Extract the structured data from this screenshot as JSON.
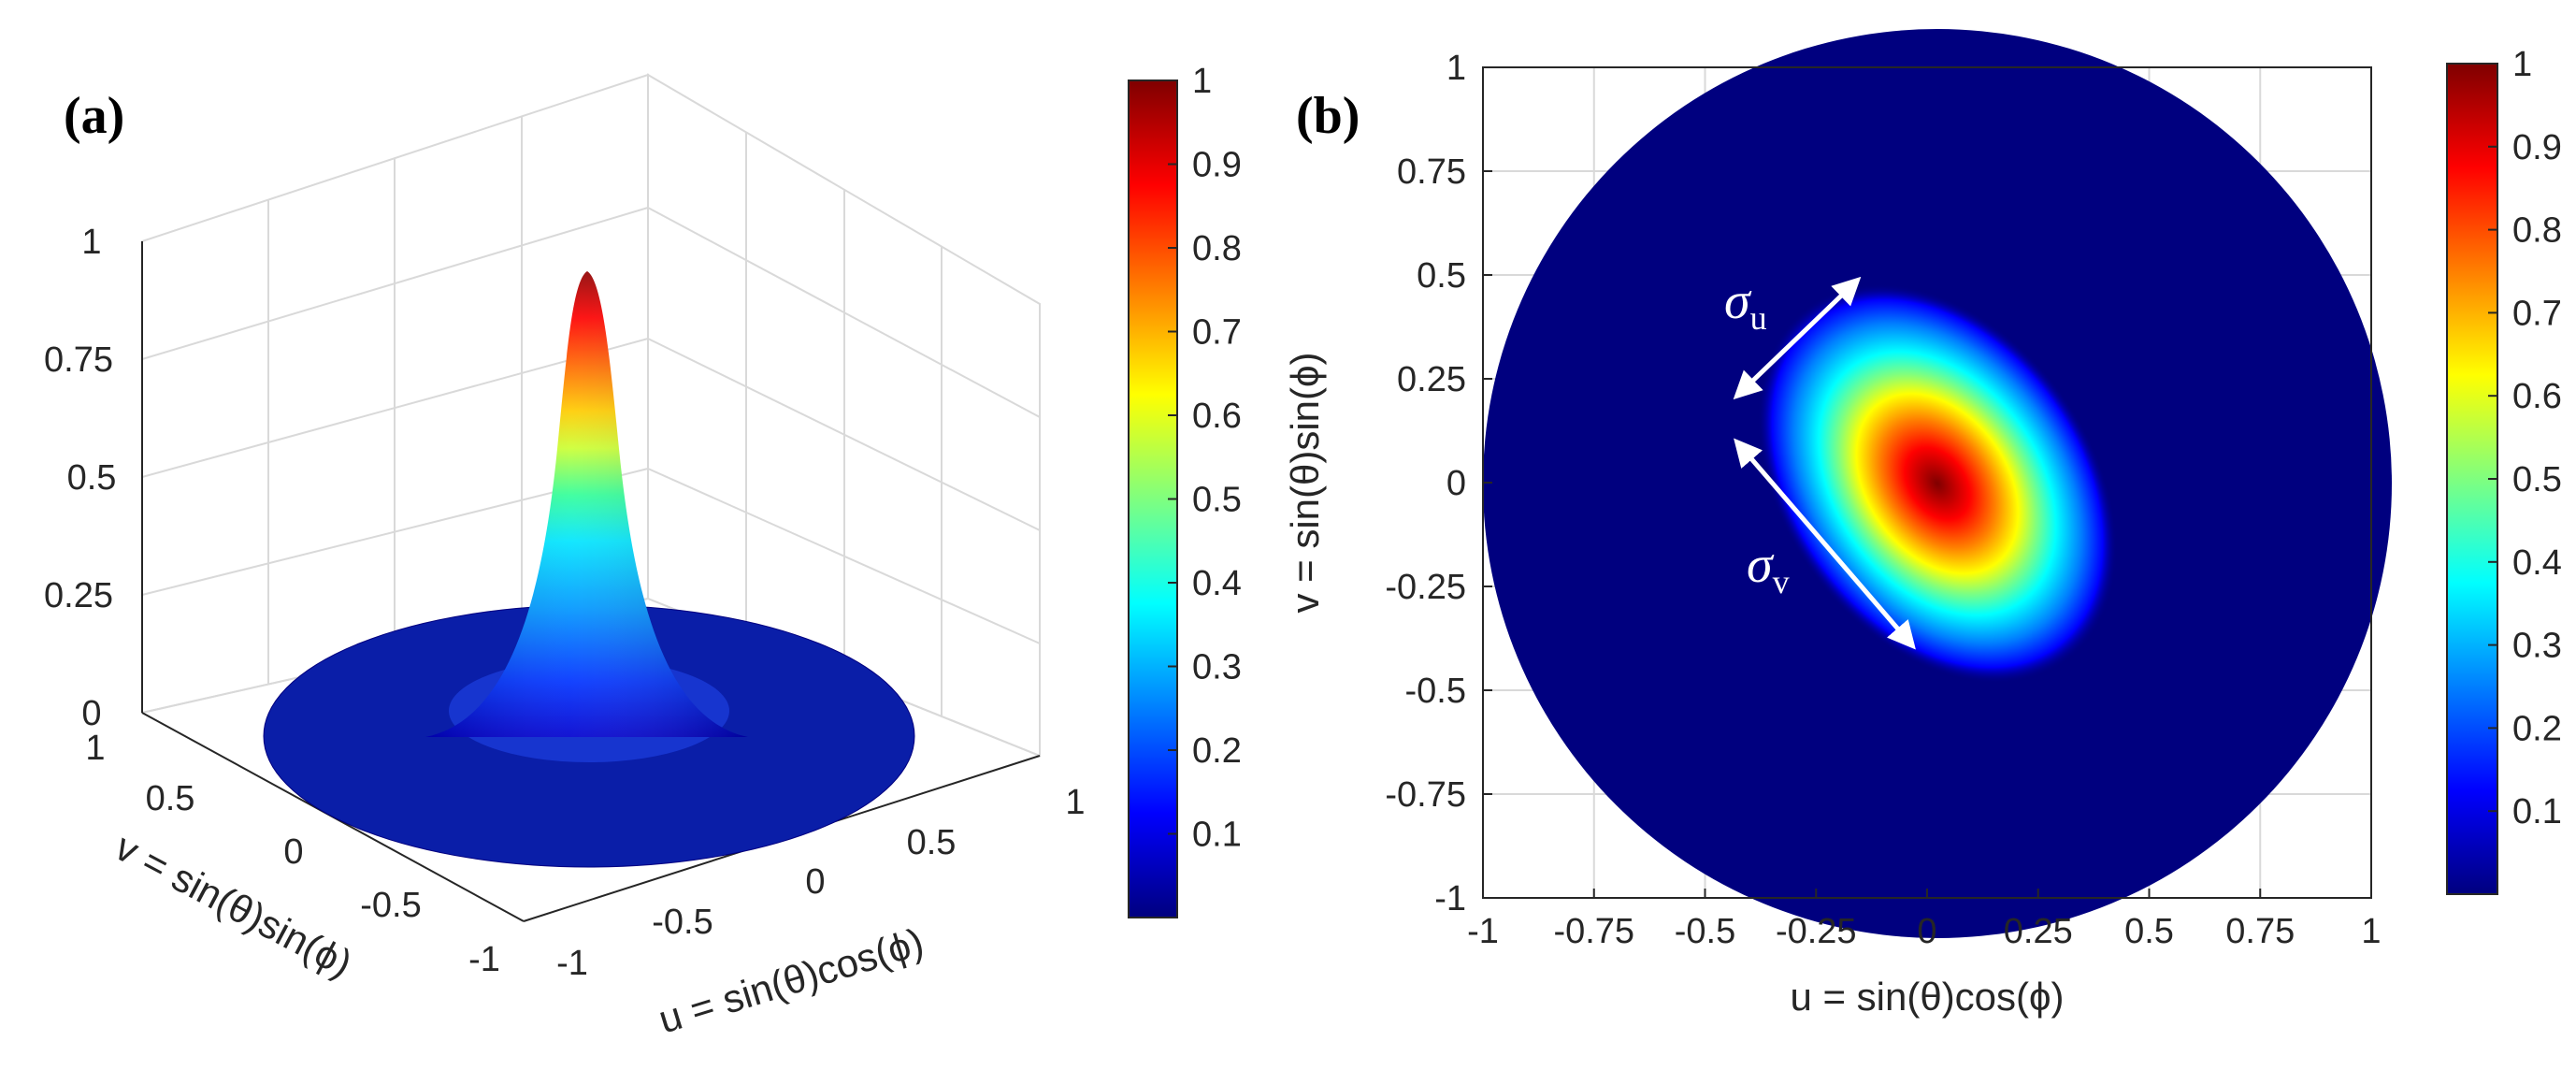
{
  "colormap": "jet",
  "colors": {
    "jet": [
      "#00007f",
      "#0000ff",
      "#007fff",
      "#00ffff",
      "#7fff7f",
      "#ffff00",
      "#ff7f00",
      "#ff0000",
      "#7f0000"
    ]
  },
  "panel_a": {
    "label": "(a)",
    "xlabel": "u = sin(θ)cos(ϕ)",
    "ylabel": "v = sin(θ)sin(ϕ)",
    "colorbar_ticks": [
      "0.1",
      "0.2",
      "0.3",
      "0.4",
      "0.5",
      "0.6",
      "0.7",
      "0.8",
      "0.9",
      "1"
    ],
    "colorbar_tick_values": [
      0.1,
      0.2,
      0.3,
      0.4,
      0.5,
      0.6,
      0.7,
      0.8,
      0.9,
      1
    ],
    "u_ticks": [
      "-1",
      "-0.5",
      "0",
      "0.5",
      "1"
    ],
    "v_ticks": [
      "1",
      "0.5",
      "0",
      "-0.5",
      "-1"
    ],
    "z_ticks": [
      "0",
      "0.25",
      "0.5",
      "0.75",
      "1"
    ]
  },
  "panel_b": {
    "label": "(b)",
    "xlabel": "u = sin(θ)cos(ϕ)",
    "ylabel": "v = sin(θ)sin(ϕ)",
    "x_ticks": [
      "-1",
      "-0.75",
      "-0.5",
      "-0.25",
      "0",
      "0.25",
      "0.5",
      "0.75",
      "1"
    ],
    "y_ticks": [
      "1",
      "0.75",
      "0.5",
      "0.25",
      "0",
      "-0.25",
      "-0.5",
      "-0.75",
      "-1"
    ],
    "colorbar_ticks": [
      "0.1",
      "0.2",
      "0.3",
      "0.4",
      "0.5",
      "0.6",
      "0.7",
      "0.8",
      "0.9",
      "1"
    ],
    "colorbar_tick_values": [
      0.1,
      0.2,
      0.3,
      0.4,
      0.5,
      0.6,
      0.7,
      0.8,
      0.9,
      1
    ],
    "sigma_u": {
      "symbol": "σ",
      "sub": "u"
    },
    "sigma_v": {
      "symbol": "σ",
      "sub": "v"
    }
  },
  "chart_data": [
    {
      "type": "surface",
      "title": "(a)",
      "xlabel": "u = sin(θ)cos(ϕ)",
      "ylabel": "v = sin(θ)sin(ϕ)",
      "zlabel": "",
      "xlim": [
        -1,
        1
      ],
      "ylim": [
        -1,
        1
      ],
      "zlim": [
        0,
        1
      ],
      "domain": "unit disk u^2 + v^2 <= 1",
      "peak": {
        "u": 0,
        "v": 0,
        "value": 0.95
      },
      "clim": [
        0,
        1
      ]
    },
    {
      "type": "heatmap",
      "title": "(b)",
      "xlabel": "u = sin(θ)cos(ϕ)",
      "ylabel": "v = sin(θ)sin(ϕ)",
      "xlim": [
        -1,
        1
      ],
      "ylim": [
        -1,
        1
      ],
      "domain": "unit disk u^2 + v^2 <= 1",
      "peak": {
        "u": 0,
        "v": 0,
        "value": 1
      },
      "annotations": [
        "σu",
        "σv"
      ],
      "clim": [
        0,
        1
      ]
    }
  ]
}
